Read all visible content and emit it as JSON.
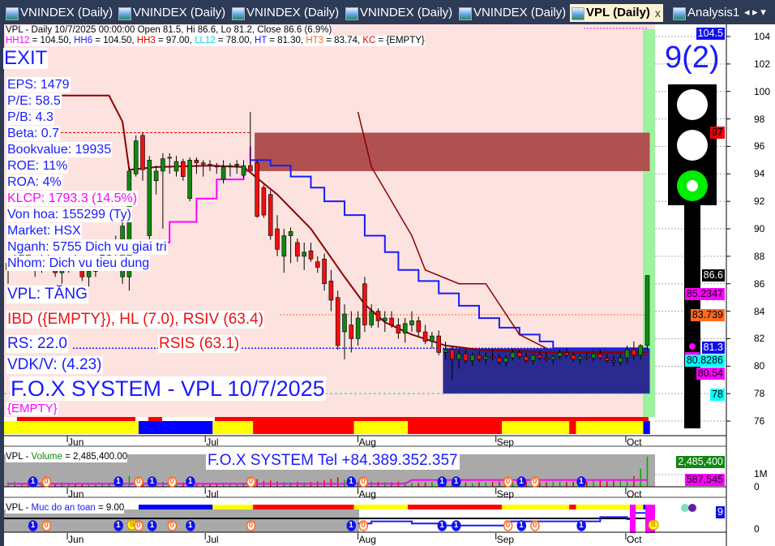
{
  "tabs": [
    {
      "label": "VNINDEX (Daily)",
      "active": false
    },
    {
      "label": "VNINDEX (Daily)",
      "active": false
    },
    {
      "label": "VNINDEX (Daily)",
      "active": false
    },
    {
      "label": "VNINDEX (Daily)",
      "active": false
    },
    {
      "label": "VNINDEX (Daily)",
      "active": false
    },
    {
      "label": "VPL (Daily)",
      "active": true,
      "close": "x"
    },
    {
      "label": "Analysis1",
      "active": false
    }
  ],
  "tab_nav": "◂ ▸ ▾",
  "header": {
    "line1": "VPL - Daily 10/7/2025 00:00:00 Open 81.5, Hi 86.6, Lo 81.2, Close 86.6 (6.9%)",
    "line2": [
      {
        "k": "HH12",
        "v": " = 104.50, ",
        "c": "#ff00ff"
      },
      {
        "k": "HH6",
        "v": " = 104.50, ",
        "c": "#1a1aff"
      },
      {
        "k": "HH3",
        "v": " = 97.00, ",
        "c": "#e00000"
      },
      {
        "k": "LL12",
        "v": " = 78.00, ",
        "c": "#00d8e8"
      },
      {
        "k": "HT",
        "v": "  = 81.30, ",
        "c": "#1a1aff"
      },
      {
        "k": "HT3",
        "v": "  = 83.74, ",
        "c": "#ff6020"
      },
      {
        "k": "KC",
        "v": " = {EMPTY}",
        "c": "#e00000"
      }
    ]
  },
  "left_info": {
    "signal": "EXIT",
    "items": [
      "EPS: 1479",
      "P/E: 58.5",
      "P/B: 4.3",
      "Beta: 0.7",
      "Bookvalue: 19935",
      "ROE: 11%",
      "ROA: 4%",
      "KLCP: 1793.3 (14.5%)",
      "Von hoa: 155299 (Ty)",
      "Market: HSX",
      "Nganh: 5755 Dich vu giai tri",
      "Nhom: Dich vu tieu dung"
    ],
    "trend": "VPL: TĂNG",
    "ibd": "IBD ({EMPTY}), HL (7.0), RSIV (63.4)",
    "rs": "RS: 22.0",
    "rsis": "RSIS (63.1)",
    "vdk": "VDK/V:  (4.23)",
    "title": "F.O.X SYSTEM - VPL 10/7/2025",
    "empty": "{EMPTY}"
  },
  "score": "9(2)",
  "traffic_light": {
    "active": "green"
  },
  "colors": {
    "up": "#118811",
    "down": "#f01010",
    "background": "#fde3e0",
    "accent": "#1a1aff"
  },
  "chart_data": [
    {
      "type": "candlestick",
      "title": "VPL - Daily",
      "ylim": [
        75,
        105
      ],
      "yticks": [
        104,
        102,
        100,
        98,
        96,
        94,
        92,
        90,
        88,
        86,
        84,
        82,
        80,
        78,
        76
      ],
      "xticks": [
        {
          "label": "Jun",
          "bar": 8.8
        },
        {
          "label": "Jul",
          "bar": 29.3
        },
        {
          "label": "Aug",
          "bar": 52
        },
        {
          "label": "Sep",
          "bar": 72.5
        },
        {
          "label": "Oct",
          "bar": 91.8
        }
      ],
      "candles_ohlc": [
        [
          87,
          88,
          86,
          87.5
        ],
        [
          87.5,
          88.5,
          87,
          88
        ],
        [
          88,
          89,
          87.5,
          88.3
        ],
        [
          88.3,
          89,
          87,
          87.4
        ],
        [
          87.4,
          88,
          86.5,
          87
        ],
        [
          87,
          88.2,
          86.8,
          87.9
        ],
        [
          87.9,
          88.6,
          87.2,
          87.5
        ],
        [
          87.5,
          88,
          86.5,
          86.8
        ],
        [
          86.8,
          87.5,
          86,
          87.2
        ],
        [
          87.2,
          88,
          86.8,
          87.6
        ],
        [
          87.6,
          88.4,
          87,
          87.3
        ],
        [
          87.3,
          87.8,
          86.2,
          86.5
        ],
        [
          86.5,
          87.2,
          85.8,
          86.9
        ],
        [
          86.9,
          88,
          86.5,
          87.7
        ],
        [
          87.7,
          88.5,
          87.2,
          88.1
        ],
        [
          88.1,
          89,
          87.8,
          88.6
        ],
        [
          88.6,
          89.5,
          88,
          89
        ],
        [
          86.5,
          90.5,
          86,
          90.2
        ],
        [
          86.5,
          94.5,
          85.5,
          94.2
        ],
        [
          94,
          96.8,
          93.8,
          96.4
        ],
        [
          96.8,
          97,
          93.5,
          94.3
        ],
        [
          89.5,
          95.3,
          88.8,
          95
        ],
        [
          93.5,
          94.6,
          92.5,
          94.2
        ],
        [
          94.2,
          95.5,
          90,
          95.1
        ],
        [
          95.2,
          95.5,
          94,
          95.2
        ],
        [
          94.2,
          95.3,
          93.8,
          94.9
        ],
        [
          94.9,
          95.1,
          93.5,
          93.8
        ],
        [
          92.2,
          95.2,
          92,
          95
        ],
        [
          95,
          95.2,
          94,
          94.8
        ],
        [
          94.8,
          95,
          93.8,
          94.7
        ],
        [
          94.7,
          95,
          94.2,
          94.6
        ],
        [
          94.6,
          94.8,
          94,
          94.5
        ],
        [
          93.6,
          95,
          93.3,
          94.5
        ],
        [
          94.5,
          94.8,
          93.8,
          94.6
        ],
        [
          94.6,
          95,
          94,
          94.7
        ],
        [
          93.9,
          95,
          93.7,
          94.6
        ],
        [
          94.6,
          98.5,
          94.5,
          94.2
        ],
        [
          94.8,
          95,
          90.8,
          90.9
        ],
        [
          93,
          93.2,
          90.8,
          91
        ],
        [
          92.5,
          92.8,
          89.2,
          89.5
        ],
        [
          90,
          91,
          88,
          88.5
        ],
        [
          88,
          90,
          86.8,
          89.5
        ],
        [
          89.5,
          90.1,
          87.5,
          89.8
        ],
        [
          89,
          89.3,
          87.6,
          88
        ],
        [
          88,
          89,
          87,
          88.3
        ],
        [
          88.4,
          89,
          87.6,
          87.8
        ],
        [
          87.6,
          88,
          86.8,
          87.2
        ],
        [
          87.8,
          88.2,
          85.5,
          86
        ],
        [
          86.2,
          87,
          84,
          84.8
        ],
        [
          85,
          85.5,
          81.2,
          81.5
        ],
        [
          82.5,
          84.5,
          80.5,
          83.8
        ],
        [
          83,
          84,
          81,
          82
        ],
        [
          82,
          84,
          81.5,
          83.5
        ],
        [
          86,
          86.5,
          82.5,
          83
        ],
        [
          83,
          84.5,
          82.8,
          84
        ],
        [
          84,
          84.2,
          82.8,
          83.3
        ],
        [
          83.3,
          84,
          82.5,
          83.5
        ],
        [
          83.5,
          84,
          82.8,
          83
        ],
        [
          83,
          83.5,
          82,
          82.4
        ],
        [
          82.4,
          83.5,
          81.7,
          83.1
        ],
        [
          83,
          84,
          82.5,
          83.3
        ],
        [
          83.3,
          83.6,
          82.2,
          82.5
        ],
        [
          82.5,
          83,
          81.6,
          81.8
        ],
        [
          81.8,
          82.5,
          81.3,
          82.2
        ],
        [
          82.2,
          82.6,
          80.8,
          81
        ],
        [
          81,
          81.8,
          80.5,
          81.2
        ],
        [
          81.2,
          81.5,
          79,
          80.5
        ],
        [
          80.5,
          81.2,
          79.8,
          80.9
        ],
        [
          80.9,
          81.2,
          80.2,
          80.4
        ],
        [
          80.4,
          81,
          80,
          80.8
        ],
        [
          80.8,
          81.1,
          80.3,
          80.5
        ],
        [
          80.5,
          81,
          80.1,
          80.7
        ],
        [
          80.7,
          81.2,
          80.4,
          80.6
        ],
        [
          80.6,
          80.9,
          80.1,
          80.3
        ],
        [
          80.3,
          80.8,
          80,
          80.6
        ],
        [
          80.6,
          81.3,
          80.4,
          81
        ],
        [
          81,
          81.2,
          80.5,
          80.7
        ],
        [
          80.7,
          81,
          80.2,
          80.4
        ],
        [
          80.4,
          80.9,
          80.1,
          80.8
        ],
        [
          80.8,
          81.1,
          80.4,
          80.6
        ],
        [
          80.6,
          81,
          80.3,
          80.5
        ],
        [
          80.5,
          80.8,
          80.1,
          80.7
        ],
        [
          80.7,
          81.2,
          80.5,
          81
        ],
        [
          81,
          81.3,
          80.6,
          80.8
        ],
        [
          80.8,
          81,
          80.3,
          80.5
        ],
        [
          80.5,
          80.9,
          80.2,
          80.7
        ],
        [
          80.7,
          81,
          80.4,
          80.6
        ],
        [
          80.6,
          81.1,
          80.3,
          80.9
        ],
        [
          80.9,
          81.2,
          80.5,
          80.6
        ],
        [
          80.6,
          80.9,
          80.2,
          80.4
        ],
        [
          80.4,
          80.8,
          80,
          80.3
        ],
        [
          80.3,
          81,
          80,
          80.6
        ],
        [
          80.6,
          81.5,
          80.2,
          81.2
        ],
        [
          81.2,
          81.8,
          80.4,
          80.8
        ],
        [
          80.8,
          81.6,
          80.5,
          81.5
        ],
        [
          81.5,
          86.6,
          81.2,
          86.6
        ]
      ],
      "indicators": {
        "ht_step": [
          [
            36,
            95
          ],
          [
            39,
            94.6
          ],
          [
            42,
            93.8
          ],
          [
            45,
            93
          ],
          [
            47,
            92
          ],
          [
            50,
            91
          ],
          [
            53,
            89.5
          ],
          [
            56,
            88.3
          ],
          [
            58,
            87
          ],
          [
            61,
            86.2
          ],
          [
            64,
            85.3
          ],
          [
            67,
            84.4
          ],
          [
            70,
            83.5
          ],
          [
            73,
            82.8
          ],
          [
            76,
            82.3
          ],
          [
            79,
            81.8
          ],
          [
            81,
            81.3
          ],
          [
            95,
            81.3
          ]
        ],
        "trend_line": [
          [
            8,
            99.7
          ],
          [
            15,
            99.7
          ],
          [
            17,
            97.8
          ],
          [
            18,
            94.3
          ],
          [
            22,
            94.5
          ],
          [
            30,
            94.6
          ],
          [
            35,
            94.5
          ],
          [
            40,
            92.5
          ],
          [
            45,
            90
          ],
          [
            50,
            86.5
          ],
          [
            53,
            84.5
          ],
          [
            56,
            83.2
          ],
          [
            60,
            82.3
          ],
          [
            65,
            81.5
          ],
          [
            70,
            81.2
          ],
          [
            80,
            81
          ],
          [
            95,
            81
          ]
        ],
        "resistance_line": [
          [
            52,
            98.5
          ],
          [
            54,
            94.5
          ],
          [
            57,
            92
          ],
          [
            60,
            89.5
          ],
          [
            62,
            87
          ],
          [
            67,
            86
          ],
          [
            71,
            86
          ],
          [
            76,
            82.3
          ],
          [
            80,
            81.3
          ]
        ],
        "trailing_stop": [
          [
            17,
            88.5
          ],
          [
            20,
            89
          ],
          [
            24,
            90.5
          ],
          [
            28,
            92.2
          ],
          [
            31,
            93.6
          ],
          [
            35,
            94.2
          ],
          [
            36,
            96
          ]
        ]
      },
      "levels": {
        "HH3": 97,
        "HT3": 83.74,
        "HT": 81.3,
        "LL12": 78
      },
      "zones": [
        {
          "from_bar": 37,
          "to_bar": 95,
          "low": 94.2,
          "high": 97,
          "color": "#b05050"
        },
        {
          "from_bar": 65,
          "to_bar": 95,
          "low": 78,
          "high": 81.3,
          "color": "#2a2a8f"
        }
      ],
      "axis_badges": [
        {
          "text": "104.5",
          "bg": "#1010ee",
          "fg": "#fff",
          "value": 104.5
        },
        {
          "text": "97",
          "bg": "#f00000",
          "fg": "#000",
          "value": 97
        },
        {
          "text": "86.6",
          "bg": "#000",
          "fg": "#fff",
          "value": 86.6
        },
        {
          "text": "85.2347",
          "bg": "#ff00ff",
          "fg": "#000",
          "value": 85.2347
        },
        {
          "text": "83.739",
          "bg": "#ff6a20",
          "fg": "#000",
          "value": 83.739
        },
        {
          "text": "81.3",
          "bg": "#1010ee",
          "fg": "#fff",
          "value": 81.3
        },
        {
          "text": "80.8286",
          "bg": "#00ffff",
          "fg": "#000",
          "value": 80.8286
        },
        {
          "text": "80.54",
          "bg": "#ff00ff",
          "fg": "#000",
          "value": 80.54
        },
        {
          "text": "78",
          "bg": "#00ffff",
          "fg": "#000",
          "value": 78
        }
      ],
      "status_band": [
        [
          "#ffff00",
          0,
          20
        ],
        [
          "#0000ff",
          20,
          31
        ],
        [
          "#ffff00",
          31,
          37
        ],
        [
          "#ff0000",
          37,
          52
        ],
        [
          "#ffff00",
          52,
          60
        ],
        [
          "#ff0000",
          60,
          74
        ],
        [
          "#ffff00",
          74,
          84
        ],
        [
          "#ff0000",
          84,
          85
        ],
        [
          "#ffff00",
          85,
          95
        ],
        [
          "#0000ff",
          95,
          96
        ]
      ]
    },
    {
      "type": "bar",
      "title": "VPL - Volume = 2,485,400.00",
      "title_parts": {
        "sym": "VPL",
        "name": "Volume",
        "value": " = 2,485,400.00"
      },
      "yticks": [
        "1M",
        "0"
      ],
      "volume_k": [
        380,
        420,
        300,
        500,
        260,
        340,
        410,
        290,
        360,
        330,
        280,
        310,
        260,
        240,
        300,
        350,
        330,
        420,
        880,
        640,
        520,
        690,
        480,
        430,
        390,
        410,
        360,
        300,
        280,
        310,
        270,
        260,
        320,
        300,
        280,
        340,
        560,
        620,
        480,
        510,
        430,
        390,
        370,
        410,
        360,
        380,
        430,
        520,
        640,
        780,
        560,
        470,
        420,
        510,
        440,
        400,
        380,
        360,
        420,
        390,
        350,
        330,
        370,
        410,
        380,
        360,
        420,
        390,
        340,
        310,
        380,
        360,
        400,
        420,
        380,
        350,
        390,
        420,
        460,
        400,
        380,
        430,
        410,
        390,
        440,
        460,
        420,
        480,
        500,
        450,
        470,
        520,
        430,
        880,
        1480,
        2485
      ],
      "badges": [
        {
          "text": "2,485,400",
          "bg": "#118811",
          "fg": "#fff"
        },
        {
          "text": "587,545",
          "bg": "#ff00ff",
          "fg": "#000"
        }
      ],
      "banner": "F.O.X SYSTEM Tel +84.389.352.357"
    },
    {
      "type": "line",
      "title": "VPL - Muc do an toan = 9.00",
      "title_parts": {
        "sym": "VPL",
        "name": "Muc do an toan",
        "value": " = 9.00"
      },
      "yticks": [
        "0"
      ],
      "safety": [
        [
          52,
          3
        ],
        [
          54,
          4
        ],
        [
          58,
          4
        ],
        [
          60,
          3
        ],
        [
          64,
          2
        ],
        [
          70,
          2
        ],
        [
          74,
          4
        ],
        [
          80,
          4
        ],
        [
          86,
          4
        ],
        [
          88,
          6
        ],
        [
          92,
          5
        ],
        [
          93,
          8
        ],
        [
          95,
          9
        ]
      ],
      "badge": {
        "text": "9",
        "bg": "#1010ee",
        "fg": "#fff"
      },
      "marker_8": "8"
    }
  ],
  "markers": [
    {
      "t": "1",
      "bar": 3.7
    },
    {
      "t": "0",
      "bar": 5.7
    },
    {
      "t": "1",
      "bar": 16.4
    },
    {
      "t": "0",
      "bar": 19.4
    },
    {
      "t": "1",
      "bar": 21.4
    },
    {
      "t": "0",
      "bar": 24.4
    },
    {
      "t": "1",
      "bar": 27.1
    },
    {
      "t": "0",
      "bar": 36.1
    },
    {
      "t": "1",
      "bar": 51
    },
    {
      "t": "0",
      "bar": 52.8
    },
    {
      "t": "1",
      "bar": 64.5
    },
    {
      "t": "1",
      "bar": 66.6
    },
    {
      "t": "0",
      "bar": 74.3
    },
    {
      "t": "1",
      "bar": 76.3
    },
    {
      "t": "0",
      "bar": 78.3
    },
    {
      "t": "1",
      "bar": 85.2
    }
  ]
}
